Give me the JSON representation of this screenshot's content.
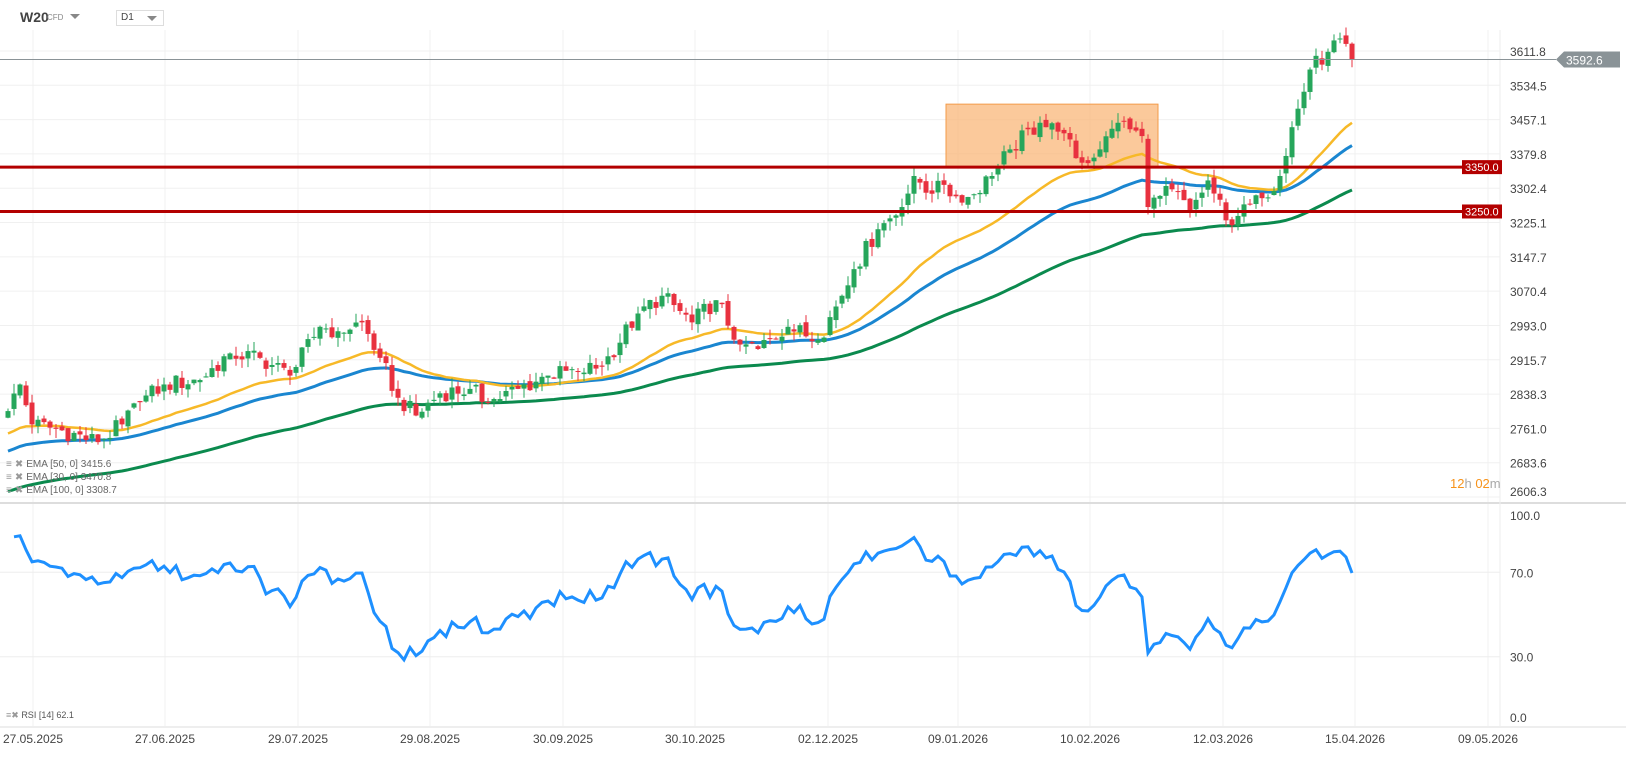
{
  "toolbar": {
    "symbol": "W20",
    "instrument_type": "CFD",
    "timeframe": "D1"
  },
  "countdown": {
    "hours": "12",
    "h": "h",
    "minutes": "02",
    "m": "m"
  },
  "indicators": [
    {
      "label": "EMA [50, 0] 3415.6",
      "color": "#1a86d0"
    },
    {
      "label": "EMA [30, 0] 3470.8",
      "color": "#f7b928"
    },
    {
      "label": "EMA [100, 0] 3308.7",
      "color": "#0b8a4e"
    }
  ],
  "rsi": {
    "label": "RSI [14] 62.1",
    "color": "#1e90ff",
    "ticks": [
      "100.0",
      "70.0",
      "30.0",
      "0.0"
    ]
  },
  "chart_data": {
    "type": "candlestick",
    "symbol": "W20",
    "timeframe": "D1",
    "y_ticks": [
      "3611.8",
      "3534.5",
      "3457.1",
      "3379.8",
      "3302.4",
      "3225.1",
      "3147.7",
      "3070.4",
      "2993.0",
      "2915.7",
      "2838.3",
      "2761.0",
      "2683.6",
      "2606.3"
    ],
    "ylim": [
      2606.3,
      3611.8
    ],
    "x_ticks": [
      "27.05.2025",
      "27.06.2025",
      "29.07.2025",
      "29.08.2025",
      "30.09.2025",
      "30.10.2025",
      "02.12.2025",
      "09.01.2026",
      "10.02.2026",
      "12.03.2026",
      "15.04.2026",
      "09.05.2026"
    ],
    "candle_count": 225,
    "close_anchors": [
      [
        0,
        2800
      ],
      [
        2,
        2860
      ],
      [
        4,
        2770
      ],
      [
        8,
        2760
      ],
      [
        15,
        2730
      ],
      [
        19,
        2770
      ],
      [
        22,
        2820
      ],
      [
        26,
        2860
      ],
      [
        32,
        2870
      ],
      [
        37,
        2930
      ],
      [
        42,
        2920
      ],
      [
        47,
        2880
      ],
      [
        52,
        2990
      ],
      [
        55,
        2980
      ],
      [
        59,
        3000
      ],
      [
        62,
        2920
      ],
      [
        65,
        2830
      ],
      [
        68,
        2790
      ],
      [
        72,
        2840
      ],
      [
        77,
        2850
      ],
      [
        80,
        2820
      ],
      [
        85,
        2850
      ],
      [
        90,
        2880
      ],
      [
        95,
        2890
      ],
      [
        99,
        2900
      ],
      [
        105,
        3020
      ],
      [
        109,
        3060
      ],
      [
        114,
        3000
      ],
      [
        118,
        3050
      ],
      [
        122,
        2950
      ],
      [
        125,
        2940
      ],
      [
        130,
        2990
      ],
      [
        135,
        2960
      ],
      [
        139,
        3060
      ],
      [
        141,
        3120
      ],
      [
        145,
        3210
      ],
      [
        149,
        3260
      ],
      [
        151,
        3330
      ],
      [
        154,
        3290
      ],
      [
        156,
        3310
      ],
      [
        159,
        3270
      ],
      [
        164,
        3330
      ],
      [
        167,
        3390
      ],
      [
        172,
        3450
      ],
      [
        175,
        3430
      ],
      [
        179,
        3360
      ],
      [
        182,
        3390
      ],
      [
        185,
        3450
      ],
      [
        189,
        3420
      ],
      [
        190,
        3260
      ],
      [
        194,
        3300
      ],
      [
        197,
        3250
      ],
      [
        200,
        3320
      ],
      [
        203,
        3230
      ],
      [
        205,
        3240
      ],
      [
        209,
        3280
      ],
      [
        212,
        3330
      ],
      [
        214,
        3440
      ],
      [
        216,
        3520
      ],
      [
        217,
        3570
      ],
      [
        220,
        3610
      ],
      [
        222,
        3640
      ],
      [
        224,
        3592.6
      ]
    ],
    "last_price": "3592.6",
    "levels": [
      {
        "value": 3350.0,
        "label": "3350.0"
      },
      {
        "value": 3250.0,
        "label": "3250.0"
      }
    ],
    "zone": {
      "from_index": 157,
      "to_index": 191,
      "low": 3350,
      "high": 3492
    },
    "ema_seed": {
      "ema30": 2746,
      "ema50": 2706,
      "ema100": 2615
    },
    "colors": {
      "up": "#26a65b",
      "down": "#e8313f",
      "level": "#b30000",
      "zone": "#f9b77a",
      "price_line": "#8a9397"
    }
  }
}
